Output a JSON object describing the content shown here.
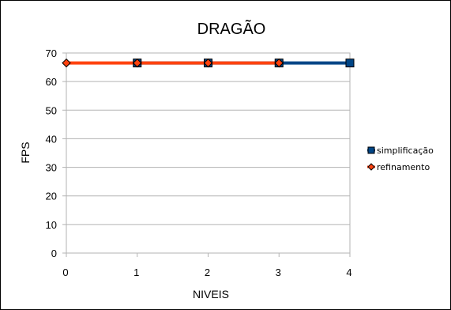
{
  "chart_data": {
    "type": "line",
    "title": "DRAGÃO",
    "xlabel": "NIVEIS",
    "ylabel": "FPS",
    "x": [
      0,
      1,
      2,
      3,
      4
    ],
    "xlim": [
      0,
      4
    ],
    "ylim": [
      0,
      70
    ],
    "ytick_step": 10,
    "grid": true,
    "legend_position": "right",
    "series": [
      {
        "name": "simplificação",
        "x": [
          1,
          2,
          3,
          4
        ],
        "values": [
          66.5,
          66.5,
          66.5,
          66.5
        ],
        "color": "#004586",
        "marker": "square"
      },
      {
        "name": "refinamento",
        "x": [
          0,
          1,
          2,
          3
        ],
        "values": [
          66.5,
          66.5,
          66.5,
          66.5
        ],
        "color": "#ff420e",
        "marker": "diamond"
      }
    ]
  }
}
